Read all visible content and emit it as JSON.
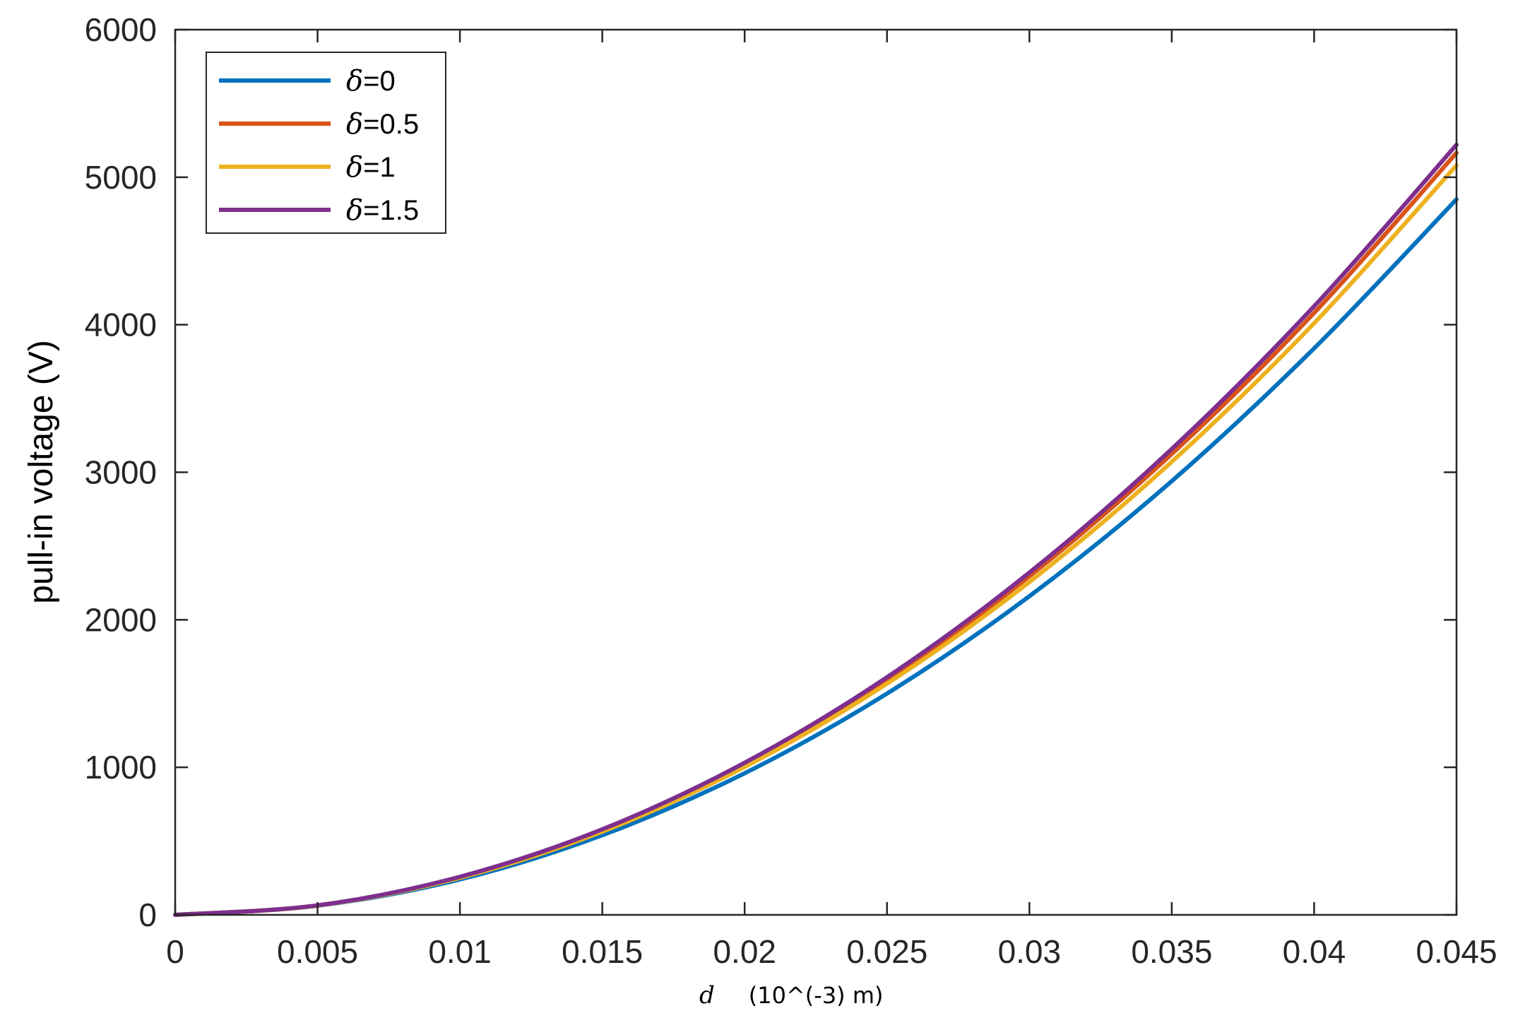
{
  "chart_data": {
    "type": "line",
    "xlabel": {
      "symbol": "d",
      "unit": "(10^(-3) m)"
    },
    "ylabel": "pull-in voltage (V)",
    "xlim": [
      0,
      0.045
    ],
    "ylim": [
      0,
      6000
    ],
    "xticks": [
      0,
      0.005,
      0.01,
      0.015,
      0.02,
      0.025,
      0.03,
      0.035,
      0.04,
      0.045
    ],
    "xtick_labels": [
      "0",
      "0.005",
      "0.01",
      "0.015",
      "0.02",
      "0.025",
      "0.03",
      "0.035",
      "0.04",
      "0.045"
    ],
    "yticks": [
      0,
      1000,
      2000,
      3000,
      4000,
      5000,
      6000
    ],
    "ytick_labels": [
      "0",
      "1000",
      "2000",
      "3000",
      "4000",
      "5000",
      "6000"
    ],
    "grid": false,
    "legend_position": "top-left",
    "x": [
      0,
      0.005,
      0.01,
      0.015,
      0.02,
      0.025,
      0.03,
      0.035,
      0.04,
      0.045
    ],
    "series": [
      {
        "name_symbol": "δ",
        "name_value": "=0",
        "color": "#0072BD",
        "values": [
          0,
          62,
          240,
          540,
          960,
          1500,
          2160,
          2940,
          3840,
          4850
        ]
      },
      {
        "name_symbol": "δ",
        "name_value": "=0.5",
        "color": "#D95319",
        "values": [
          0,
          64,
          255,
          574,
          1020,
          1594,
          2295,
          3124,
          4080,
          5165
        ]
      },
      {
        "name_symbol": "δ",
        "name_value": "=1",
        "color": "#EDB120",
        "values": [
          0,
          63,
          251,
          564,
          1003,
          1567,
          2256,
          3071,
          4010,
          5080
        ]
      },
      {
        "name_symbol": "δ",
        "name_value": "=1.5",
        "color": "#7E2F8E",
        "values": [
          0,
          64,
          258,
          580,
          1031,
          1611,
          2320,
          3158,
          4125,
          5220
        ]
      }
    ]
  }
}
